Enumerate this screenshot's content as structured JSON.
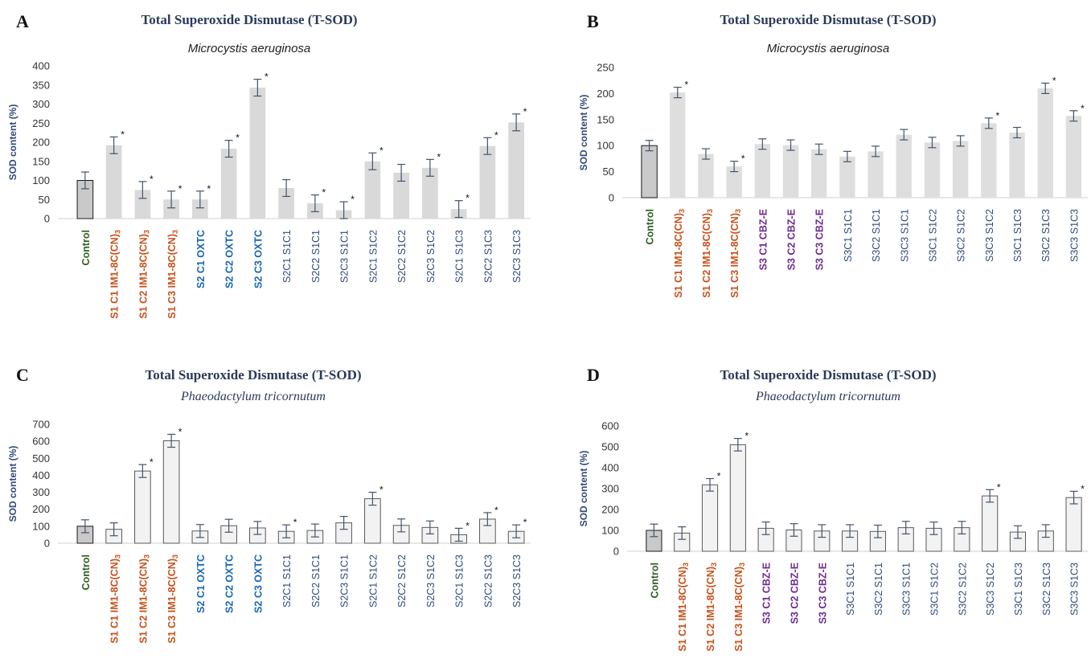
{
  "colors": {
    "control": "#2e5e1f",
    "s1": "#c8501a",
    "s2": "#1767b4",
    "s3": "#6f2a93",
    "other": "#2f4b78",
    "title": "#2b3a59",
    "axis": "#2f4b78",
    "error": "#44546a"
  },
  "chart_data": [
    {
      "type": "bar",
      "panel_letter": "A",
      "title": "Total Superoxide Dismutase (T-SOD)",
      "subtitle": "Microcystis aeruginosa",
      "subtitle_style": "italic-sans",
      "ylabel": "SOD content (%)",
      "ylim": [
        0,
        400
      ],
      "yticks": [
        "0",
        "50",
        "100",
        "150",
        "200",
        "250",
        "300",
        "350",
        "400"
      ],
      "categories": [
        "Control",
        "S1 C1 IM1-8C(CN)₃",
        "S1 C2 IM1-8C(CN)₃",
        "S1 C3 IM1-8C(CN)₃",
        "S2 C1 OXTC",
        "S2 C2 OXTC",
        "S2 C3  OXTC",
        "S2C1 S1C1",
        "S2C2 S1C1",
        "S2C3 S1C1",
        "S2C1 S1C2",
        "S2C2 S1C2",
        "S2C3 S1C2",
        "S2C1 S1C3",
        "S2C2 S1C3",
        "S2C3 S1C3"
      ],
      "category_groups": [
        "control",
        "s1",
        "s1",
        "s1",
        "s2",
        "s2",
        "s2",
        "other",
        "other",
        "other",
        "other",
        "other",
        "other",
        "other",
        "other",
        "other"
      ],
      "values": [
        100,
        192,
        75,
        50,
        50,
        183,
        343,
        80,
        40,
        22,
        150,
        120,
        133,
        25,
        190,
        252
      ],
      "errors": [
        22,
        22,
        22,
        22,
        22,
        22,
        22,
        22,
        22,
        22,
        22,
        22,
        22,
        22,
        22,
        22
      ],
      "significant": [
        false,
        true,
        true,
        true,
        true,
        true,
        true,
        false,
        true,
        true,
        true,
        false,
        true,
        true,
        true,
        true
      ],
      "significance_mark": "*"
    },
    {
      "type": "bar",
      "panel_letter": "B",
      "title": "Total Superoxide Dismutase (T-SOD)",
      "subtitle": "Microcystis aeruginosa",
      "subtitle_style": "italic-sans",
      "ylabel": "SOD content (%)",
      "ylim": [
        0,
        250
      ],
      "yticks": [
        "0",
        "50",
        "100",
        "150",
        "200",
        "250"
      ],
      "categories": [
        "Control",
        "S1 C1 IM1-8C(CN)₃",
        "S1 C2 IM1-8C(CN)₃",
        "S1 C3 IM1-8C(CN)₃",
        "S3 C1 CBZ-E",
        "S3 C2 CBZ-E",
        "S3 C3 CBZ-E",
        "S3C1 S1C1",
        "S3C2 S1C1",
        "S3C3 S1C1",
        "S3C1 S1C2",
        "S3C2 S1C2",
        "S3C3 S1C2",
        "S3C1 S1C3",
        "S3C2 S1C3",
        "S3C3 S1C3"
      ],
      "category_groups": [
        "control",
        "s1",
        "s1",
        "s1",
        "s3",
        "s3",
        "s3",
        "other",
        "other",
        "other",
        "other",
        "other",
        "other",
        "other",
        "other",
        "other"
      ],
      "values": [
        100,
        202,
        84,
        60,
        103,
        101,
        93,
        79,
        89,
        121,
        106,
        109,
        143,
        125,
        210,
        157
      ],
      "errors": [
        10,
        10,
        10,
        10,
        10,
        10,
        10,
        10,
        10,
        10,
        10,
        10,
        10,
        10,
        10,
        10
      ],
      "significant": [
        false,
        true,
        false,
        true,
        false,
        false,
        false,
        false,
        false,
        false,
        false,
        false,
        true,
        false,
        true,
        true
      ],
      "significance_mark": "*"
    },
    {
      "type": "bar",
      "panel_letter": "C",
      "title": "Total Superoxide Dismutase (T-SOD)",
      "subtitle": "Phaeodactylum tricornutum",
      "subtitle_style": "italic-serif",
      "ylabel": "SOD content (%)",
      "ylim": [
        0,
        700
      ],
      "yticks": [
        "0",
        "100",
        "200",
        "300",
        "400",
        "500",
        "600",
        "700"
      ],
      "categories": [
        "Control",
        "S1 C1 IM1-8C(CN)₃",
        "S1 C2 IM1-8C(CN)₃",
        "S1 C3 IM1-8C(CN)₃",
        "S2 C1 OXTC",
        "S2 C2 OXTC",
        "S2 C3  OXTC",
        "S2C1 S1C1",
        "S2C2 S1C1",
        "S2C3 S1C1",
        "S2C1 S1C2",
        "S2C2 S1C2",
        "S2C3 S1C2",
        "S2C1 S1C3",
        "S2C2 S1C3",
        "S2C3 S1C3"
      ],
      "category_groups": [
        "control",
        "s1",
        "s1",
        "s1",
        "s2",
        "s2",
        "s2",
        "other",
        "other",
        "other",
        "other",
        "other",
        "other",
        "other",
        "other",
        "other"
      ],
      "values": [
        100,
        82,
        425,
        603,
        72,
        103,
        90,
        70,
        75,
        120,
        262,
        105,
        93,
        50,
        142,
        70
      ],
      "errors": [
        38,
        38,
        38,
        38,
        38,
        38,
        38,
        38,
        38,
        38,
        38,
        38,
        38,
        38,
        38,
        38
      ],
      "significant": [
        false,
        false,
        true,
        true,
        false,
        false,
        false,
        true,
        false,
        false,
        true,
        false,
        false,
        true,
        true,
        true
      ],
      "significance_mark": "*"
    },
    {
      "type": "bar",
      "panel_letter": "D",
      "title": "Total Superoxide Dismutase (T-SOD)",
      "subtitle": "Phaeodactylum tricornutum",
      "subtitle_style": "italic-serif",
      "ylabel": "SOD content (%)",
      "ylim": [
        0,
        600
      ],
      "yticks": [
        "0",
        "100",
        "200",
        "300",
        "400",
        "500",
        "600"
      ],
      "categories": [
        "Control",
        "S1 C1 IM1-8C(CN)₃",
        "S1 C2 IM1-8C(CN)₃",
        "S1 C3 IM1-8C(CN)₃",
        "S3 C1 CBZ-E",
        "S3 C2 CBZ-E",
        "S3 C3 CBZ-E",
        "S3C1 S1C1",
        "S3C2 S1C1",
        "S3C3 S1C1",
        "S3C1 S1C2",
        "S3C2 S1C2",
        "S3C3 S1C2",
        "S3C1 S1C3",
        "S3C2 S1C3",
        "S3C3 S1C3"
      ],
      "category_groups": [
        "control",
        "s1",
        "s1",
        "s1",
        "s3",
        "s3",
        "s3",
        "other",
        "other",
        "other",
        "other",
        "other",
        "other",
        "other",
        "other",
        "other"
      ],
      "values": [
        100,
        87,
        318,
        510,
        110,
        102,
        97,
        97,
        95,
        113,
        110,
        113,
        265,
        92,
        97,
        257
      ],
      "errors": [
        30,
        30,
        30,
        30,
        30,
        30,
        30,
        30,
        30,
        30,
        30,
        30,
        30,
        30,
        30,
        30
      ],
      "significant": [
        false,
        false,
        true,
        true,
        false,
        false,
        false,
        false,
        false,
        false,
        false,
        false,
        true,
        false,
        false,
        true
      ],
      "significance_mark": "*"
    }
  ]
}
